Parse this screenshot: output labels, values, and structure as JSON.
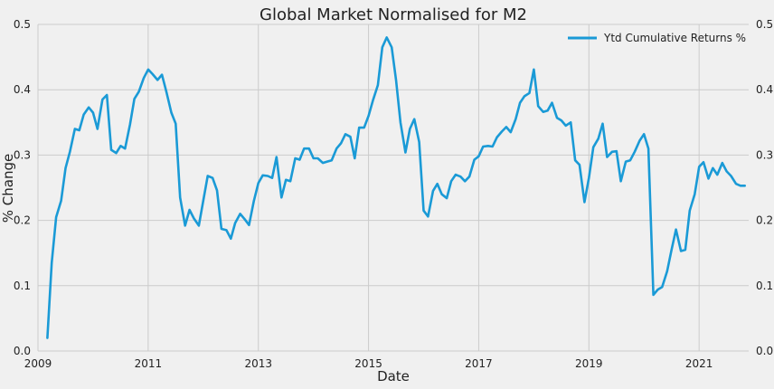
{
  "chart_data": {
    "type": "line",
    "title": "Global Market Normalised for M2",
    "xlabel": "Date",
    "ylabel": "% Change",
    "x_ticks": [
      "2009",
      "2011",
      "2013",
      "2015",
      "2017",
      "2019",
      "2021"
    ],
    "y_ticks_left": [
      "0.0",
      "0.1",
      "0.2",
      "0.3",
      "0.4",
      "0.5"
    ],
    "y_ticks_right": [
      "0.0",
      "0.1",
      "0.2",
      "0.3",
      "0.4",
      "0.5"
    ],
    "ylim": [
      0.0,
      0.5
    ],
    "xlim": [
      2009.0,
      2021.9
    ],
    "grid": true,
    "legend_position": "top-right",
    "series": [
      {
        "name": "Ytd Cumulative Returns %",
        "color": "#1a9ad6",
        "x": [
          2009.17,
          2009.25,
          2009.33,
          2009.42,
          2009.5,
          2009.58,
          2009.67,
          2009.75,
          2009.83,
          2009.92,
          2010.0,
          2010.08,
          2010.17,
          2010.25,
          2010.33,
          2010.42,
          2010.5,
          2010.58,
          2010.67,
          2010.75,
          2010.83,
          2010.92,
          2011.0,
          2011.08,
          2011.17,
          2011.25,
          2011.33,
          2011.42,
          2011.5,
          2011.58,
          2011.67,
          2011.75,
          2011.83,
          2011.92,
          2012.0,
          2012.08,
          2012.17,
          2012.25,
          2012.33,
          2012.42,
          2012.5,
          2012.58,
          2012.67,
          2012.75,
          2012.83,
          2012.92,
          2013.0,
          2013.08,
          2013.17,
          2013.25,
          2013.33,
          2013.42,
          2013.5,
          2013.58,
          2013.67,
          2013.75,
          2013.83,
          2013.92,
          2014.0,
          2014.08,
          2014.17,
          2014.25,
          2014.33,
          2014.42,
          2014.5,
          2014.58,
          2014.67,
          2014.75,
          2014.83,
          2014.92,
          2015.0,
          2015.08,
          2015.17,
          2015.25,
          2015.33,
          2015.42,
          2015.5,
          2015.58,
          2015.67,
          2015.75,
          2015.83,
          2015.92,
          2016.0,
          2016.08,
          2016.17,
          2016.25,
          2016.33,
          2016.42,
          2016.5,
          2016.58,
          2016.67,
          2016.75,
          2016.83,
          2016.92,
          2017.0,
          2017.08,
          2017.17,
          2017.25,
          2017.33,
          2017.42,
          2017.5,
          2017.58,
          2017.67,
          2017.75,
          2017.83,
          2017.92,
          2018.0,
          2018.08,
          2018.17,
          2018.25,
          2018.33,
          2018.42,
          2018.5,
          2018.58,
          2018.67,
          2018.75,
          2018.83,
          2018.92,
          2019.0,
          2019.08,
          2019.17,
          2019.25,
          2019.33,
          2019.42,
          2019.5,
          2019.58,
          2019.67,
          2019.75,
          2019.83,
          2019.92,
          2020.0,
          2020.08,
          2020.17,
          2020.25,
          2020.33,
          2020.42,
          2020.5,
          2020.58,
          2020.67,
          2020.75,
          2020.83,
          2020.92,
          2021.0,
          2021.08,
          2021.17,
          2021.25,
          2021.33,
          2021.42,
          2021.5,
          2021.58,
          2021.67,
          2021.75,
          2021.83
        ],
        "y": [
          0.02,
          0.135,
          0.205,
          0.23,
          0.28,
          0.305,
          0.34,
          0.338,
          0.362,
          0.373,
          0.365,
          0.34,
          0.385,
          0.392,
          0.308,
          0.303,
          0.314,
          0.31,
          0.347,
          0.386,
          0.397,
          0.418,
          0.431,
          0.424,
          0.415,
          0.423,
          0.397,
          0.365,
          0.348,
          0.235,
          0.192,
          0.216,
          0.203,
          0.192,
          0.23,
          0.268,
          0.265,
          0.246,
          0.187,
          0.185,
          0.172,
          0.196,
          0.21,
          0.202,
          0.193,
          0.23,
          0.257,
          0.269,
          0.268,
          0.265,
          0.297,
          0.235,
          0.262,
          0.26,
          0.295,
          0.293,
          0.31,
          0.31,
          0.295,
          0.295,
          0.288,
          0.29,
          0.292,
          0.31,
          0.318,
          0.332,
          0.328,
          0.295,
          0.342,
          0.342,
          0.36,
          0.384,
          0.407,
          0.465,
          0.48,
          0.465,
          0.415,
          0.35,
          0.304,
          0.34,
          0.355,
          0.32,
          0.215,
          0.206,
          0.245,
          0.256,
          0.24,
          0.234,
          0.26,
          0.27,
          0.267,
          0.26,
          0.267,
          0.293,
          0.298,
          0.313,
          0.314,
          0.313,
          0.327,
          0.336,
          0.343,
          0.335,
          0.355,
          0.38,
          0.39,
          0.395,
          0.431,
          0.375,
          0.366,
          0.368,
          0.38,
          0.357,
          0.353,
          0.345,
          0.35,
          0.292,
          0.285,
          0.228,
          0.265,
          0.312,
          0.325,
          0.348,
          0.297,
          0.305,
          0.306,
          0.26,
          0.29,
          0.292,
          0.305,
          0.322,
          0.332,
          0.31,
          0.086,
          0.094,
          0.098,
          0.122,
          0.155,
          0.186,
          0.153,
          0.155,
          0.215,
          0.24,
          0.282,
          0.289,
          0.264,
          0.28,
          0.27,
          0.288,
          0.275,
          0.268,
          0.256,
          0.253,
          0.253
        ]
      }
    ]
  }
}
